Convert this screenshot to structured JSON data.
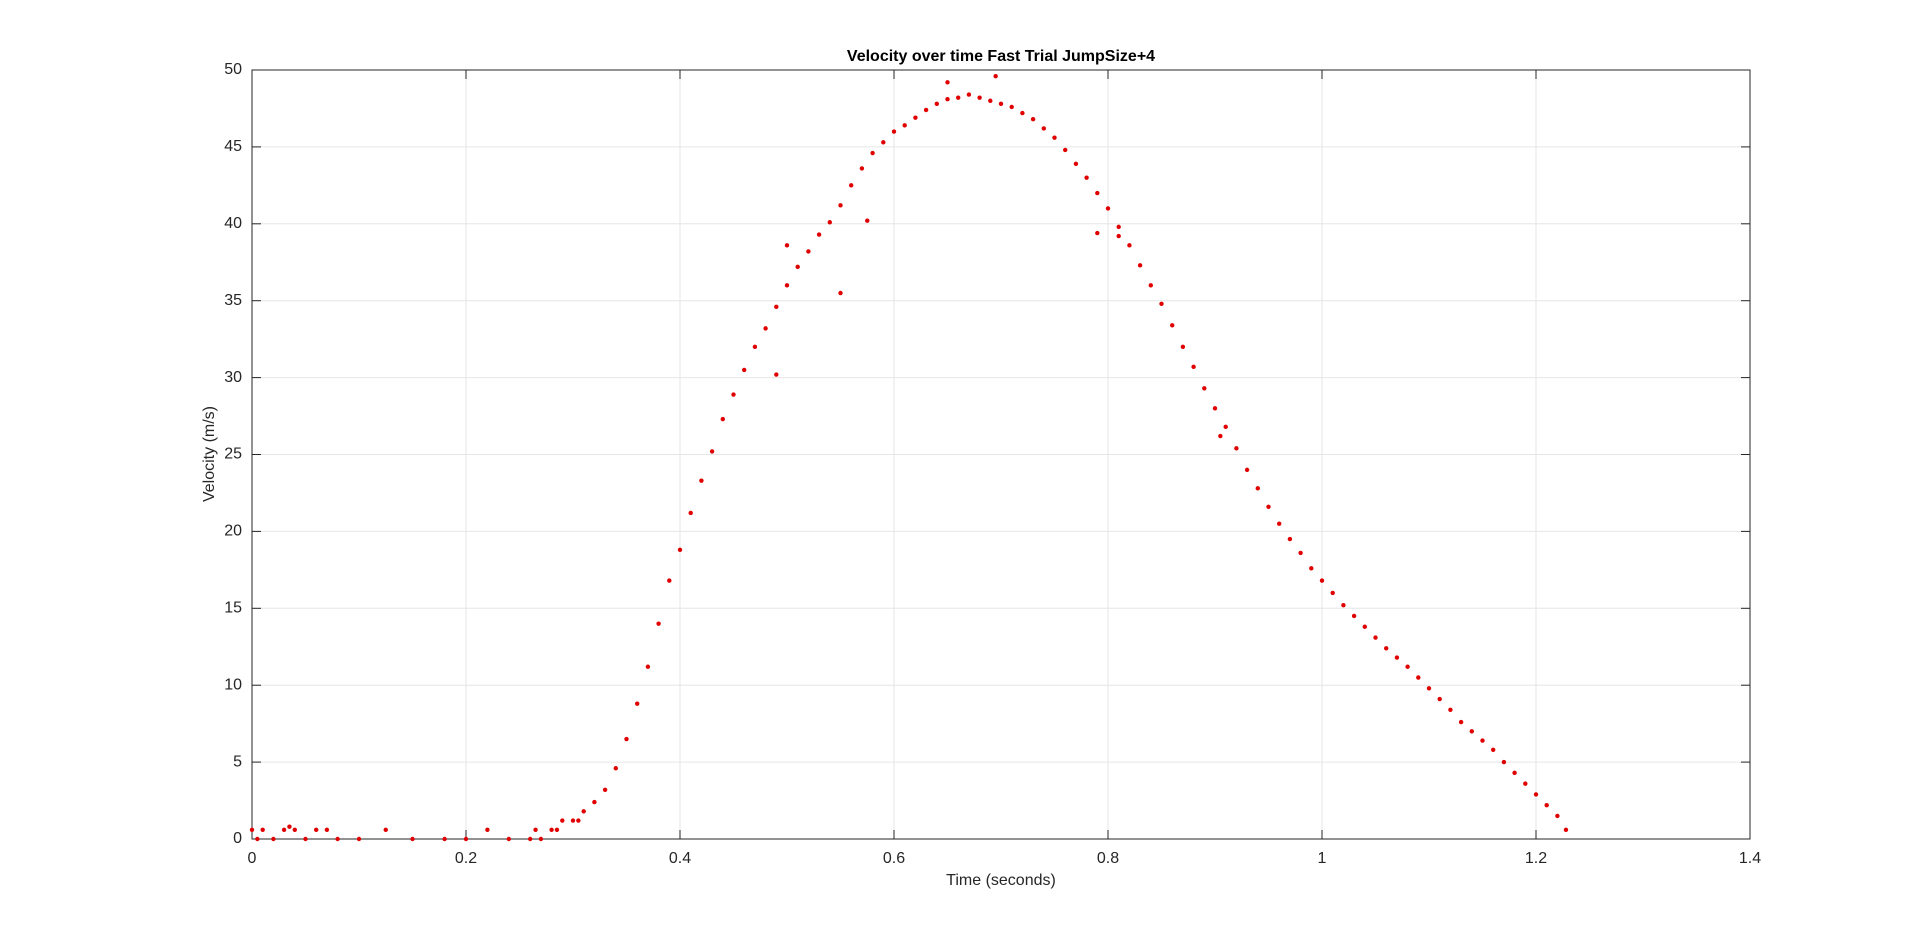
{
  "chart_data": {
    "type": "scatter",
    "title": "Velocity over time Fast Trial JumpSize+4",
    "x_label": "Time (seconds)",
    "y_label": "Velocity (m/s)",
    "x": [
      0,
      0.005,
      0.01,
      0.02,
      0.03,
      0.035,
      0.04,
      0.05,
      0.06,
      0.07,
      0.08,
      0.1,
      0.125,
      0.15,
      0.18,
      0.2,
      0.22,
      0.24,
      0.26,
      0.265,
      0.27,
      0.28,
      0.285,
      0.29,
      0.3,
      0.305,
      0.31,
      0.32,
      0.33,
      0.34,
      0.35,
      0.36,
      0.37,
      0.38,
      0.39,
      0.4,
      0.41,
      0.42,
      0.43,
      0.44,
      0.45,
      0.46,
      0.47,
      0.48,
      0.49,
      0.5,
      0.51,
      0.52,
      0.53,
      0.54,
      0.55,
      0.56,
      0.57,
      0.58,
      0.59,
      0.6,
      0.61,
      0.62,
      0.63,
      0.64,
      0.65,
      0.66,
      0.67,
      0.68,
      0.69,
      0.7,
      0.71,
      0.72,
      0.73,
      0.74,
      0.75,
      0.76,
      0.77,
      0.78,
      0.79,
      0.8,
      0.81,
      0.82,
      0.83,
      0.84,
      0.85,
      0.86,
      0.87,
      0.88,
      0.89,
      0.9,
      0.91,
      0.92,
      0.93,
      0.94,
      0.95,
      0.96,
      0.97,
      0.98,
      0.99,
      1.0,
      1.01,
      1.02,
      1.03,
      1.04,
      1.05,
      1.06,
      1.07,
      1.08,
      1.09,
      1.1,
      1.11,
      1.12,
      1.13,
      1.14,
      1.15,
      1.16,
      1.17,
      1.18,
      1.19,
      1.2,
      1.21,
      1.22,
      1.228,
      0.49,
      0.55,
      0.79,
      0.905,
      0.81,
      0.5,
      0.695,
      0.65,
      0.575
    ],
    "values": [
      0.6,
      0,
      0.6,
      0,
      0.6,
      0.8,
      0.6,
      0,
      0.6,
      0.6,
      0,
      0,
      0.6,
      0,
      0,
      0,
      0.6,
      0,
      0,
      0.6,
      0,
      0.6,
      0.6,
      1.2,
      1.2,
      1.2,
      1.8,
      2.4,
      3.2,
      4.6,
      6.5,
      8.8,
      11.2,
      14,
      16.8,
      18.8,
      21.2,
      23.3,
      25.2,
      27.3,
      28.9,
      30.5,
      32,
      33.2,
      34.6,
      36,
      37.2,
      38.2,
      39.3,
      40.1,
      41.2,
      42.5,
      43.6,
      44.6,
      45.3,
      46,
      46.4,
      46.9,
      47.4,
      47.8,
      48.1,
      48.2,
      48.4,
      48.2,
      48,
      47.8,
      47.6,
      47.2,
      46.8,
      46.2,
      45.6,
      44.8,
      43.9,
      43,
      42,
      41,
      39.8,
      38.6,
      37.3,
      36,
      34.8,
      33.4,
      32,
      30.7,
      29.3,
      28,
      26.8,
      25.4,
      24,
      22.8,
      21.6,
      20.5,
      19.5,
      18.6,
      17.6,
      16.8,
      16,
      15.2,
      14.5,
      13.8,
      13.1,
      12.4,
      11.8,
      11.2,
      10.5,
      9.8,
      9.1,
      8.4,
      7.6,
      7,
      6.4,
      5.8,
      5,
      4.3,
      3.6,
      2.9,
      2.2,
      1.5,
      0.6,
      30.2,
      35.5,
      39.4,
      26.2,
      39.2,
      38.6,
      49.6,
      49.2,
      40.2
    ],
    "color": "#e00000",
    "xlim": [
      0,
      1.4
    ],
    "xticks": [
      0,
      0.2,
      0.4,
      0.6,
      0.8,
      1,
      1.2,
      1.4
    ],
    "ylim": [
      0,
      50
    ],
    "yticks": [
      0,
      5,
      10,
      15,
      20,
      25,
      30,
      35,
      40,
      45,
      50
    ],
    "grid": true
  }
}
